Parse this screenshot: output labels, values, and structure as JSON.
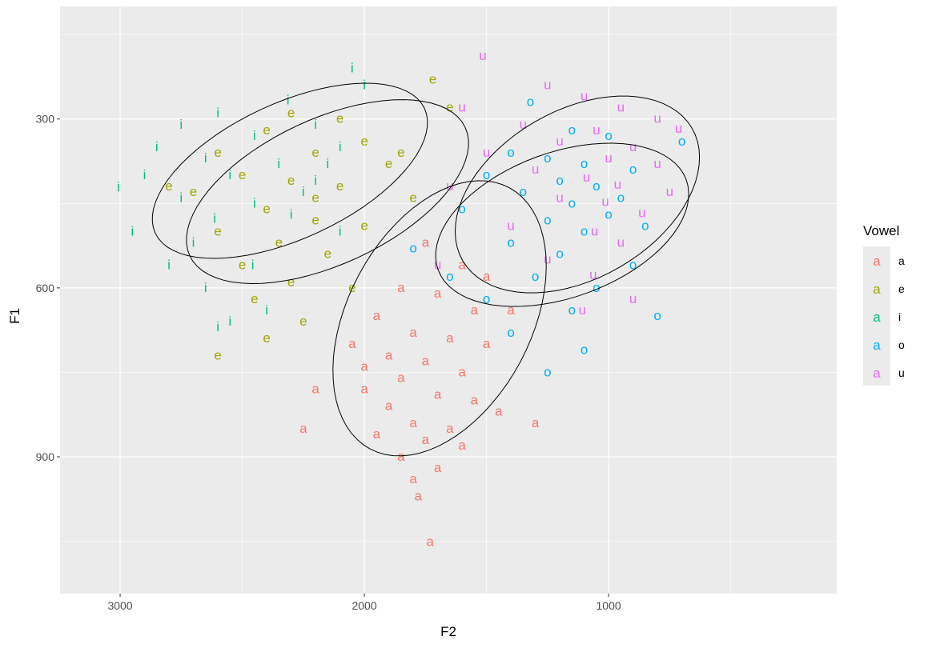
{
  "chart_data": {
    "type": "scatter",
    "xlabel": "F2",
    "ylabel": "F1",
    "xlim": [
      3246,
      66
    ],
    "ylim": [
      100,
      1143
    ],
    "x_reversed": true,
    "y_reversed": true,
    "grid": true,
    "xticks": [
      3000,
      2000,
      1000
    ],
    "xticks_minor": [
      2500,
      1500,
      500
    ],
    "yticks": [
      300,
      600,
      900
    ],
    "yticks_minor": [
      150,
      450,
      750,
      1050
    ],
    "legend": {
      "title": "Vowel",
      "placement": "right",
      "key_glyph": "a",
      "entries": [
        "a",
        "e",
        "i",
        "o",
        "u"
      ]
    },
    "colors": {
      "a": "#F8766D",
      "e": "#A3A500",
      "i": "#00BF7D",
      "o": "#00B0F6",
      "u": "#E76BF3"
    },
    "series": [
      {
        "name": "a",
        "points": [
          [
            1750,
            520
          ],
          [
            1600,
            560
          ],
          [
            1850,
            600
          ],
          [
            1700,
            610
          ],
          [
            1550,
            640
          ],
          [
            1950,
            650
          ],
          [
            1800,
            680
          ],
          [
            1650,
            690
          ],
          [
            1500,
            700
          ],
          [
            2050,
            700
          ],
          [
            1900,
            720
          ],
          [
            1750,
            730
          ],
          [
            1600,
            750
          ],
          [
            1850,
            760
          ],
          [
            2000,
            780
          ],
          [
            1700,
            790
          ],
          [
            1550,
            800
          ],
          [
            1900,
            810
          ],
          [
            1800,
            840
          ],
          [
            1650,
            850
          ],
          [
            1950,
            860
          ],
          [
            1750,
            870
          ],
          [
            1600,
            880
          ],
          [
            1850,
            900
          ],
          [
            1700,
            920
          ],
          [
            2200,
            780
          ],
          [
            2250,
            850
          ],
          [
            1450,
            820
          ],
          [
            1300,
            840
          ],
          [
            1800,
            940
          ],
          [
            1780,
            970
          ],
          [
            1731,
            1051
          ],
          [
            2000,
            740
          ],
          [
            1400,
            640
          ],
          [
            1500,
            580
          ]
        ]
      },
      {
        "name": "e",
        "points": [
          [
            1720,
            230
          ],
          [
            1650,
            280
          ],
          [
            2300,
            290
          ],
          [
            2100,
            300
          ],
          [
            2400,
            320
          ],
          [
            2000,
            340
          ],
          [
            2600,
            360
          ],
          [
            2200,
            360
          ],
          [
            1900,
            380
          ],
          [
            2500,
            400
          ],
          [
            2300,
            410
          ],
          [
            2100,
            420
          ],
          [
            2700,
            430
          ],
          [
            1800,
            440
          ],
          [
            2400,
            460
          ],
          [
            2200,
            480
          ],
          [
            2000,
            490
          ],
          [
            2600,
            500
          ],
          [
            2350,
            520
          ],
          [
            2150,
            540
          ],
          [
            2500,
            560
          ],
          [
            2300,
            590
          ],
          [
            2050,
            600
          ],
          [
            2450,
            620
          ],
          [
            2250,
            660
          ],
          [
            2400,
            690
          ],
          [
            2600,
            720
          ],
          [
            2800,
            420
          ],
          [
            1850,
            360
          ],
          [
            2200,
            440
          ]
        ]
      },
      {
        "name": "i",
        "points": [
          [
            2050,
            210
          ],
          [
            2000,
            240
          ],
          [
            2300,
            270
          ],
          [
            2600,
            290
          ],
          [
            2750,
            310
          ],
          [
            2200,
            310
          ],
          [
            2450,
            330
          ],
          [
            2850,
            350
          ],
          [
            2100,
            350
          ],
          [
            2650,
            370
          ],
          [
            2350,
            380
          ],
          [
            2550,
            400
          ],
          [
            2900,
            400
          ],
          [
            2200,
            410
          ],
          [
            3007,
            421
          ],
          [
            2750,
            440
          ],
          [
            2450,
            450
          ],
          [
            2300,
            470
          ],
          [
            2600,
            480
          ],
          [
            2950,
            500
          ],
          [
            2100,
            500
          ],
          [
            2700,
            520
          ],
          [
            2500,
            560
          ],
          [
            2650,
            600
          ],
          [
            2400,
            640
          ],
          [
            2600,
            670
          ],
          [
            2550,
            660
          ],
          [
            2800,
            560
          ],
          [
            2250,
            430
          ],
          [
            2150,
            380
          ]
        ]
      },
      {
        "name": "o",
        "points": [
          [
            1320,
            270
          ],
          [
            1150,
            320
          ],
          [
            1000,
            330
          ],
          [
            1400,
            360
          ],
          [
            1250,
            370
          ],
          [
            1100,
            380
          ],
          [
            900,
            390
          ],
          [
            1500,
            400
          ],
          [
            1200,
            410
          ],
          [
            1050,
            420
          ],
          [
            1350,
            430
          ],
          [
            950,
            440
          ],
          [
            1150,
            450
          ],
          [
            1600,
            460
          ],
          [
            1000,
            470
          ],
          [
            1250,
            480
          ],
          [
            850,
            490
          ],
          [
            1100,
            500
          ],
          [
            1400,
            520
          ],
          [
            1800,
            530
          ],
          [
            1200,
            540
          ],
          [
            900,
            560
          ],
          [
            1300,
            580
          ],
          [
            1050,
            600
          ],
          [
            1500,
            620
          ],
          [
            1150,
            640
          ],
          [
            800,
            650
          ],
          [
            1400,
            680
          ],
          [
            1250,
            750
          ],
          [
            1100,
            710
          ],
          [
            700,
            340
          ],
          [
            1650,
            580
          ]
        ]
      },
      {
        "name": "u",
        "points": [
          [
            1515,
            188
          ],
          [
            1250,
            240
          ],
          [
            1100,
            260
          ],
          [
            1600,
            280
          ],
          [
            950,
            280
          ],
          [
            800,
            300
          ],
          [
            1350,
            310
          ],
          [
            1050,
            320
          ],
          [
            700,
            320
          ],
          [
            1200,
            340
          ],
          [
            900,
            350
          ],
          [
            1500,
            360
          ],
          [
            1000,
            370
          ],
          [
            800,
            380
          ],
          [
            1300,
            390
          ],
          [
            1100,
            400
          ],
          [
            950,
            420
          ],
          [
            750,
            430
          ],
          [
            1200,
            440
          ],
          [
            1000,
            460
          ],
          [
            850,
            480
          ],
          [
            1400,
            490
          ],
          [
            1100,
            500
          ],
          [
            950,
            520
          ],
          [
            1250,
            550
          ],
          [
            1050,
            580
          ],
          [
            900,
            620
          ],
          [
            1150,
            640
          ],
          [
            1700,
            560
          ],
          [
            1650,
            420
          ]
        ]
      }
    ],
    "ellipses": [
      {
        "vowel": "i",
        "center": [
          2305,
          392
        ],
        "axis1": [
          -551,
          -111
        ],
        "axis2": [
          -118,
          109
        ]
      },
      {
        "vowel": "e",
        "center": [
          2151,
          429
        ],
        "axis1": [
          -564,
          -114
        ],
        "axis2": [
          -125,
          117
        ]
      },
      {
        "vowel": "a",
        "center": [
          1692,
          654
        ],
        "axis1": [
          -285,
          -232
        ],
        "axis2": [
          -331,
          77
        ]
      },
      {
        "vowel": "o",
        "center": [
          1190,
          488
        ],
        "axis1": [
          -508,
          -80
        ],
        "axis2": [
          -102,
          121
        ]
      },
      {
        "vowel": "u",
        "center": [
          1128,
          434
        ],
        "axis1": [
          -469,
          -118
        ],
        "axis2": [
          -174,
          129
        ]
      }
    ]
  }
}
